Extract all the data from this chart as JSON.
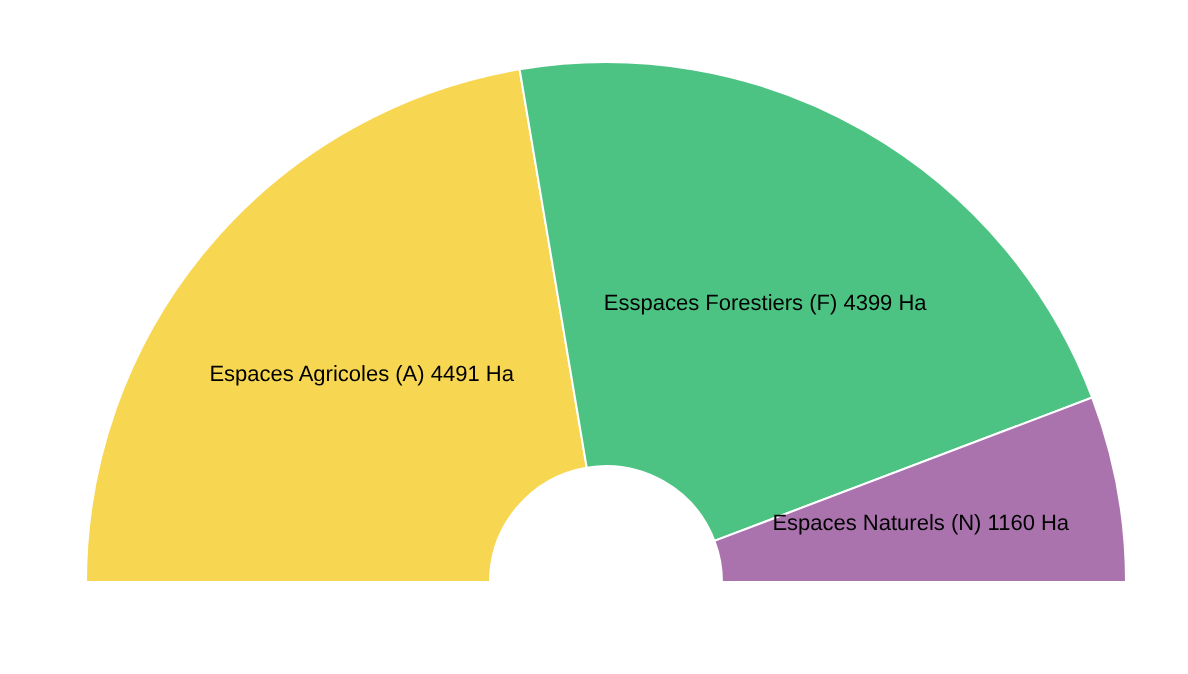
{
  "chart_data": {
    "type": "donut",
    "categories": [
      "Espaces Agricoles (A)",
      "Esspaces Forestiers (F)",
      "Espaces Naturels (N)"
    ],
    "values": [
      4491,
      4399,
      1160
    ],
    "value_labels": [
      "4491 Ha",
      "4399 Ha",
      "1160 Ha"
    ],
    "colors": [
      "#f7d752",
      "#4dc383",
      "#aa73ae"
    ]
  }
}
